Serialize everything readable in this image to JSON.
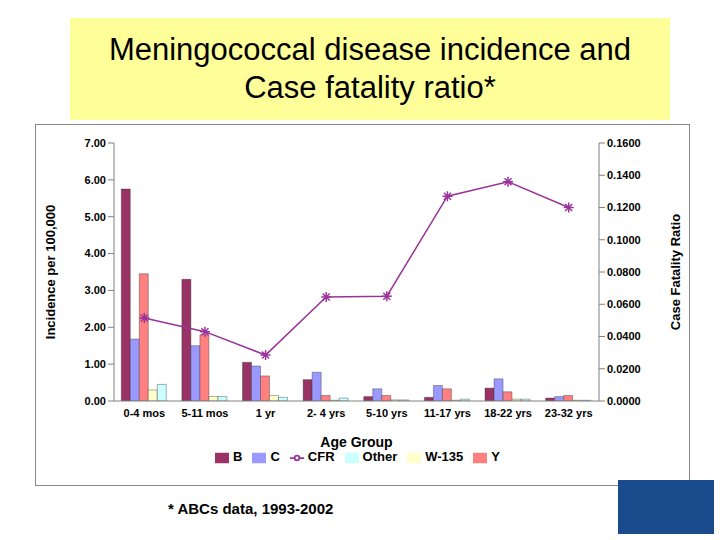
{
  "chart_data": {
    "type": "bar",
    "title": "Meningococcal disease incidence and Case fatality ratio*",
    "annotations": [
      "* ABCs data, 1993-2002"
    ],
    "x_label": "Age Group",
    "y_label": "Incidence per 100,000",
    "y2_label": "Case Fatality Ratio",
    "categories": [
      "0-4 mos",
      "5-11 mos",
      "1 yr",
      "2- 4 yrs",
      "5-10 yrs",
      "11-17 yrs",
      "18-22 yrs",
      "23-32 yrs"
    ],
    "series": [
      {
        "name": "B",
        "type": "bar",
        "color": "#993366",
        "values": [
          5.75,
          3.3,
          1.05,
          0.58,
          0.12,
          0.1,
          0.35,
          0.08
        ]
      },
      {
        "name": "C",
        "type": "bar",
        "color": "#9999FF",
        "values": [
          1.68,
          1.5,
          0.95,
          0.78,
          0.33,
          0.42,
          0.6,
          0.12
        ]
      },
      {
        "name": "Y",
        "type": "bar",
        "color": "#FF8080",
        "values": [
          3.45,
          1.8,
          0.68,
          0.15,
          0.15,
          0.33,
          0.25,
          0.15
        ]
      },
      {
        "name": "W-135",
        "type": "bar",
        "color": "#FFFFCC",
        "values": [
          0.3,
          0.12,
          0.15,
          0.02,
          0.03,
          0.02,
          0.05,
          0.02
        ]
      },
      {
        "name": "Other",
        "type": "bar",
        "color": "#CCFFFF",
        "values": [
          0.45,
          0.12,
          0.1,
          0.08,
          0.03,
          0.05,
          0.05,
          0.02
        ]
      },
      {
        "name": "CFR",
        "type": "line",
        "axis": "y2",
        "color": "#993399",
        "marker": "asterisk",
        "values": [
          0.0515,
          0.043,
          0.0285,
          0.0645,
          0.065,
          0.127,
          0.136,
          0.12
        ]
      }
    ],
    "ylim": [
      0,
      7
    ],
    "yticks": [
      {
        "value": 0,
        "label": "0.00"
      },
      {
        "value": 1,
        "label": "1.00"
      },
      {
        "value": 2,
        "label": "2.00"
      },
      {
        "value": 3,
        "label": "3.00"
      },
      {
        "value": 4,
        "label": "4.00"
      },
      {
        "value": 5,
        "label": "5.00"
      },
      {
        "value": 6,
        "label": "6.00"
      },
      {
        "value": 7,
        "label": "7.00"
      }
    ],
    "y2lim": [
      0,
      0.16
    ],
    "y2ticks": [
      {
        "value": 0,
        "label": "0.0000"
      },
      {
        "value": 0.02,
        "label": "0.0200"
      },
      {
        "value": 0.04,
        "label": "0.0400"
      },
      {
        "value": 0.06,
        "label": "0.0600"
      },
      {
        "value": 0.08,
        "label": "0.0800"
      },
      {
        "value": 0.1,
        "label": "0.1000"
      },
      {
        "value": 0.12,
        "label": "0.1200"
      },
      {
        "value": 0.14,
        "label": "0.1400"
      },
      {
        "value": 0.16,
        "label": "0.1600"
      }
    ],
    "legend": "bottom",
    "grid": false
  }
}
